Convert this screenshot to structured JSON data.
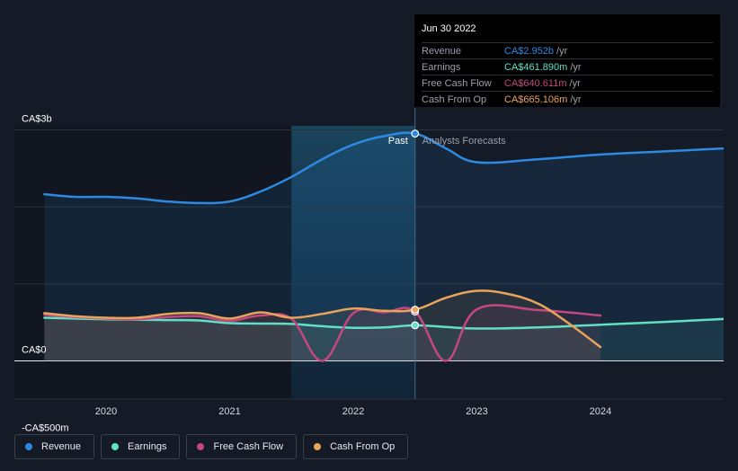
{
  "chart_data": {
    "type": "line",
    "title": "",
    "xlabel": "",
    "ylabel": "",
    "y_axis_labels": [
      "CA$3b",
      "CA$0",
      "-CA$500m"
    ],
    "y_axis_values": [
      3000,
      0,
      -500
    ],
    "ylim": [
      -500,
      3000
    ],
    "xlim": [
      2019.5,
      2025.0
    ],
    "x_ticks": [
      {
        "value": 2020,
        "label": "2020"
      },
      {
        "value": 2021,
        "label": "2021"
      },
      {
        "value": 2022,
        "label": "2022"
      },
      {
        "value": 2023,
        "label": "2023"
      },
      {
        "value": 2024,
        "label": "2024"
      }
    ],
    "past_label": "Past",
    "forecast_label": "Analysts Forecasts",
    "divider_x": 2022.5,
    "highlight_range": [
      2021.5,
      2022.5
    ],
    "series": [
      {
        "name": "Revenue",
        "color": "#2d8ae0",
        "fill": true,
        "points": [
          [
            2019.5,
            2165
          ],
          [
            2019.75,
            2130
          ],
          [
            2020.0,
            2130
          ],
          [
            2020.25,
            2110
          ],
          [
            2020.5,
            2070
          ],
          [
            2020.75,
            2050
          ],
          [
            2021.0,
            2070
          ],
          [
            2021.25,
            2200
          ],
          [
            2021.5,
            2390
          ],
          [
            2021.75,
            2620
          ],
          [
            2022.0,
            2810
          ],
          [
            2022.25,
            2920
          ],
          [
            2022.5,
            2952
          ],
          [
            2022.75,
            2760
          ],
          [
            2023.0,
            2580
          ],
          [
            2023.5,
            2620
          ],
          [
            2024.0,
            2680
          ],
          [
            2024.5,
            2720
          ],
          [
            2025.0,
            2760
          ]
        ]
      },
      {
        "name": "Earnings",
        "color": "#5fe0c7",
        "fill": true,
        "points": [
          [
            2019.5,
            560
          ],
          [
            2019.75,
            550
          ],
          [
            2020.0,
            540
          ],
          [
            2020.25,
            535
          ],
          [
            2020.5,
            530
          ],
          [
            2020.75,
            525
          ],
          [
            2021.0,
            490
          ],
          [
            2021.25,
            485
          ],
          [
            2021.5,
            480
          ],
          [
            2021.75,
            450
          ],
          [
            2022.0,
            430
          ],
          [
            2022.25,
            435
          ],
          [
            2022.5,
            462
          ],
          [
            2022.75,
            440
          ],
          [
            2023.0,
            420
          ],
          [
            2023.5,
            435
          ],
          [
            2024.0,
            470
          ],
          [
            2024.5,
            505
          ],
          [
            2025.0,
            545
          ]
        ]
      },
      {
        "name": "Free Cash Flow",
        "color": "#c4487f",
        "fill": true,
        "points": [
          [
            2019.5,
            600
          ],
          [
            2019.75,
            570
          ],
          [
            2020.0,
            550
          ],
          [
            2020.25,
            540
          ],
          [
            2020.5,
            570
          ],
          [
            2020.75,
            580
          ],
          [
            2021.0,
            520
          ],
          [
            2021.25,
            590
          ],
          [
            2021.5,
            545
          ],
          [
            2021.75,
            0
          ],
          [
            2022.0,
            620
          ],
          [
            2022.25,
            630
          ],
          [
            2022.5,
            641
          ],
          [
            2022.75,
            0
          ],
          [
            2023.0,
            670
          ],
          [
            2023.5,
            660
          ],
          [
            2024.0,
            590
          ]
        ]
      },
      {
        "name": "Cash From Op",
        "color": "#e8a55a",
        "fill": true,
        "points": [
          [
            2019.5,
            620
          ],
          [
            2019.75,
            580
          ],
          [
            2020.0,
            560
          ],
          [
            2020.25,
            560
          ],
          [
            2020.5,
            610
          ],
          [
            2020.75,
            620
          ],
          [
            2021.0,
            550
          ],
          [
            2021.25,
            630
          ],
          [
            2021.5,
            560
          ],
          [
            2021.75,
            610
          ],
          [
            2022.0,
            680
          ],
          [
            2022.25,
            650
          ],
          [
            2022.5,
            665
          ],
          [
            2022.75,
            820
          ],
          [
            2023.0,
            910
          ],
          [
            2023.25,
            870
          ],
          [
            2023.5,
            740
          ],
          [
            2023.75,
            480
          ],
          [
            2024.0,
            180
          ]
        ]
      }
    ],
    "marker_x": 2022.5,
    "markers": [
      {
        "series": "Revenue",
        "value": 2952
      },
      {
        "series": "Earnings",
        "value": 462
      },
      {
        "series": "Free Cash Flow",
        "value": 641
      },
      {
        "series": "Cash From Op",
        "value": 665
      }
    ]
  },
  "tooltip": {
    "date": "Jun 30 2022",
    "rows": [
      {
        "name": "Revenue",
        "value": "CA$2.952b",
        "unit": "/yr",
        "color": "#2d8ae0"
      },
      {
        "name": "Earnings",
        "value": "CA$461.890m",
        "unit": "/yr",
        "color": "#5fe0c7"
      },
      {
        "name": "Free Cash Flow",
        "value": "CA$640.611m",
        "unit": "/yr",
        "color": "#c4487f"
      },
      {
        "name": "Cash From Op",
        "value": "CA$665.106m",
        "unit": "/yr",
        "color": "#e8a55a"
      }
    ]
  },
  "legend": [
    {
      "label": "Revenue",
      "color": "#2d8ae0"
    },
    {
      "label": "Earnings",
      "color": "#5fe0c7"
    },
    {
      "label": "Free Cash Flow",
      "color": "#c4487f"
    },
    {
      "label": "Cash From Op",
      "color": "#e8a55a"
    }
  ]
}
